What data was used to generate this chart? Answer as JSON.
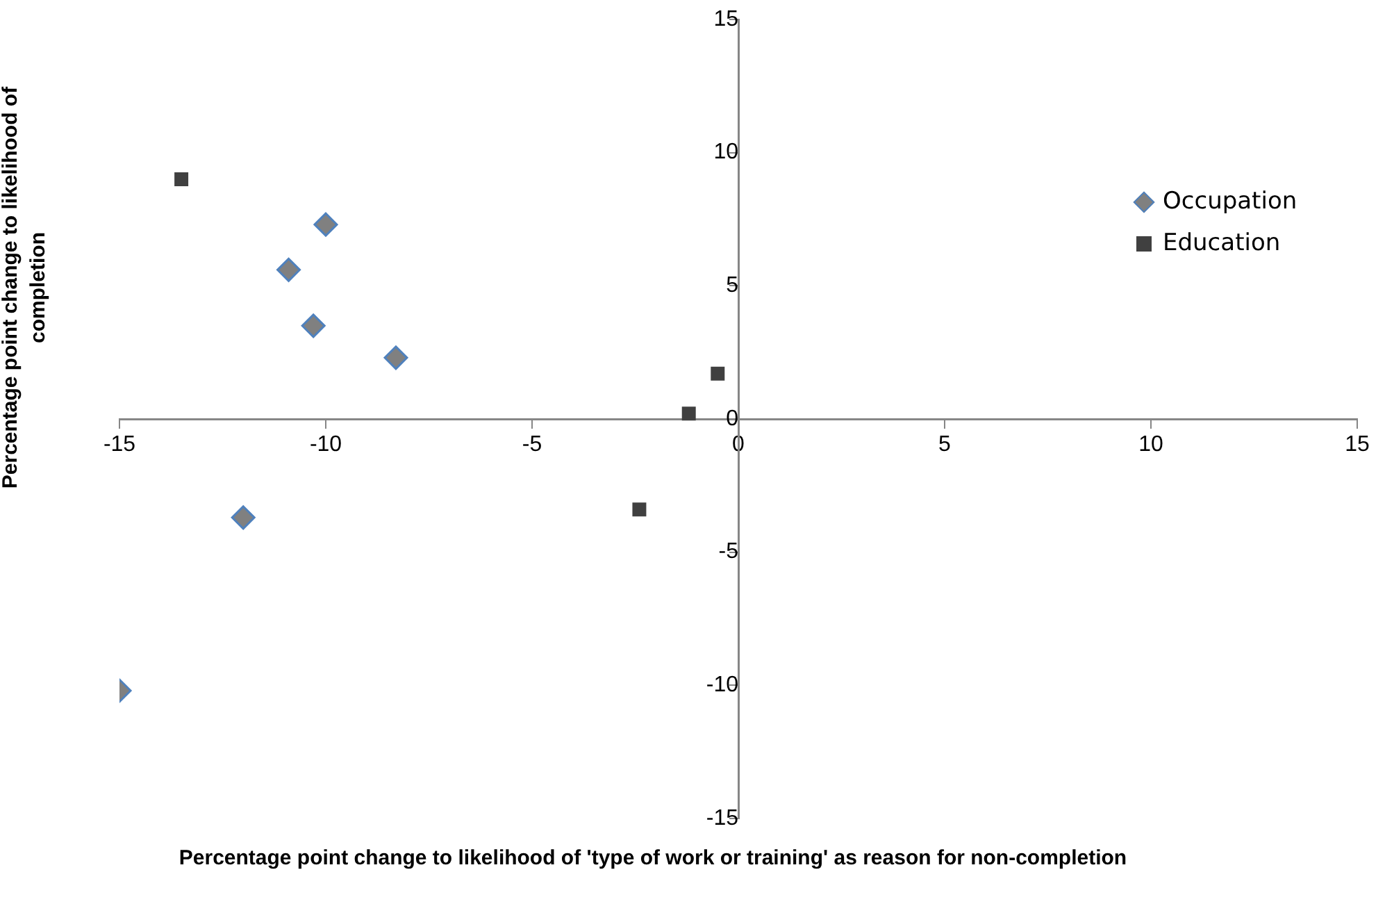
{
  "chart_data": {
    "type": "scatter",
    "xlabel": "Percentage point change to likelihood of 'type of work or training' as reason for non-completion",
    "ylabel": "Percentage point change to likelihood of completion",
    "series": [
      {
        "name": "Occupation",
        "color": "#808080",
        "marker": "diamond",
        "x": [
          -10.0,
          -10.9,
          -10.3,
          -8.3,
          -12.0,
          -15.0
        ],
        "values": [
          7.3,
          5.6,
          3.5,
          2.3,
          -3.7,
          -10.2
        ]
      },
      {
        "name": "Education",
        "color": "#404040",
        "marker": "square",
        "x": [
          -13.5,
          -0.5,
          -1.2,
          -2.4
        ],
        "values": [
          9.0,
          1.7,
          0.2,
          -3.4
        ]
      }
    ],
    "xlim": [
      -15,
      15
    ],
    "xticks": [
      -15,
      -10,
      -5,
      0,
      5,
      10,
      15
    ],
    "ylim": [
      -15,
      15
    ],
    "yticks": [
      -15,
      -10,
      -5,
      0,
      5,
      10,
      15
    ],
    "grid": false,
    "legend": "top right"
  }
}
